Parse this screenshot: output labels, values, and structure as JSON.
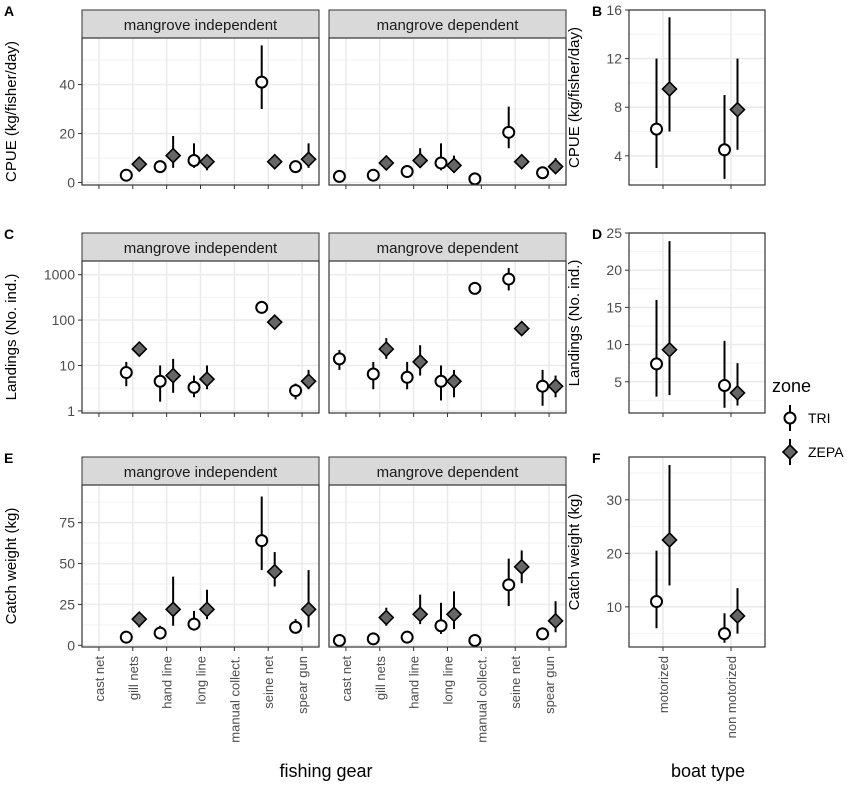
{
  "colors": {
    "panel_border": "#333333",
    "grid": "#ebebeb",
    "strip_fill": "#d9d9d9",
    "tri_fill": "#ffffff",
    "zepa_fill": "#666666",
    "stroke": "#000000"
  },
  "legend": {
    "title": "zone",
    "items": [
      {
        "label": "TRI",
        "shape": "circle"
      },
      {
        "label": "ZEPA",
        "shape": "diamond"
      }
    ]
  },
  "axes_titles": {
    "fishing_gear": "fishing gear",
    "boat_type": "boat type"
  },
  "chart_data": [
    {
      "id": "A",
      "type": "scatter",
      "ylabel": "CPUE (kg/fisher/day)",
      "scale": "linear",
      "ylim": [
        -1,
        59
      ],
      "yticks": [
        0,
        20,
        40
      ],
      "facets": [
        {
          "title": "mangrove independent",
          "points": [
            {
              "x": "gill nets",
              "zone": "TRI",
              "y": 3,
              "lo": 2,
              "hi": 5
            },
            {
              "x": "gill nets",
              "zone": "ZEPA",
              "y": 7.5,
              "lo": 6,
              "hi": 9
            },
            {
              "x": "hand line",
              "zone": "TRI",
              "y": 6.5,
              "lo": 5,
              "hi": 9
            },
            {
              "x": "hand line",
              "zone": "ZEPA",
              "y": 11,
              "lo": 6,
              "hi": 19
            },
            {
              "x": "long line",
              "zone": "TRI",
              "y": 9,
              "lo": 6,
              "hi": 16
            },
            {
              "x": "long line",
              "zone": "ZEPA",
              "y": 8.5,
              "lo": 5,
              "hi": 11
            },
            {
              "x": "seine net",
              "zone": "TRI",
              "y": 41,
              "lo": 30,
              "hi": 56
            },
            {
              "x": "seine net",
              "zone": "ZEPA",
              "y": 8.5,
              "lo": 7,
              "hi": 10
            },
            {
              "x": "spear gun",
              "zone": "TRI",
              "y": 6.5,
              "lo": 4,
              "hi": 9
            },
            {
              "x": "spear gun",
              "zone": "ZEPA",
              "y": 9.5,
              "lo": 6,
              "hi": 16
            }
          ]
        },
        {
          "title": "mangrove dependent",
          "points": [
            {
              "x": "cast net",
              "zone": "TRI",
              "y": 2.5,
              "lo": 2,
              "hi": 3
            },
            {
              "x": "gill nets",
              "zone": "TRI",
              "y": 3,
              "lo": 2,
              "hi": 5
            },
            {
              "x": "gill nets",
              "zone": "ZEPA",
              "y": 8,
              "lo": 6,
              "hi": 11
            },
            {
              "x": "hand line",
              "zone": "TRI",
              "y": 4.5,
              "lo": 3,
              "hi": 7
            },
            {
              "x": "hand line",
              "zone": "ZEPA",
              "y": 9,
              "lo": 6,
              "hi": 14
            },
            {
              "x": "long line",
              "zone": "TRI",
              "y": 8,
              "lo": 5,
              "hi": 16
            },
            {
              "x": "long line",
              "zone": "ZEPA",
              "y": 7,
              "lo": 4,
              "hi": 11
            },
            {
              "x": "manual collect.",
              "zone": "TRI",
              "y": 1.5,
              "lo": 1,
              "hi": 2
            },
            {
              "x": "seine net",
              "zone": "TRI",
              "y": 20.5,
              "lo": 14,
              "hi": 31
            },
            {
              "x": "seine net",
              "zone": "ZEPA",
              "y": 8.5,
              "lo": 7,
              "hi": 10
            },
            {
              "x": "spear gun",
              "zone": "TRI",
              "y": 4,
              "lo": 2,
              "hi": 6
            },
            {
              "x": "spear gun",
              "zone": "ZEPA",
              "y": 6.5,
              "lo": 4,
              "hi": 10
            }
          ]
        }
      ]
    },
    {
      "id": "B",
      "type": "scatter",
      "ylabel": "CPUE (kg/fisher/day)",
      "scale": "linear",
      "ylim": [
        1.6,
        16
      ],
      "yticks": [
        4,
        8,
        12,
        16
      ],
      "facets": [
        {
          "title": "",
          "points": [
            {
              "x": "motorized",
              "zone": "TRI",
              "y": 6.2,
              "lo": 3,
              "hi": 12
            },
            {
              "x": "motorized",
              "zone": "ZEPA",
              "y": 9.5,
              "lo": 6,
              "hi": 15.4
            },
            {
              "x": "non motorized",
              "zone": "TRI",
              "y": 4.5,
              "lo": 2.1,
              "hi": 9
            },
            {
              "x": "non motorized",
              "zone": "ZEPA",
              "y": 7.8,
              "lo": 4.5,
              "hi": 12
            }
          ]
        }
      ]
    },
    {
      "id": "C",
      "type": "scatter",
      "ylabel": "Landings (No. ind.)",
      "scale": "log10",
      "ylim": [
        0.9,
        2000
      ],
      "yticks": [
        1,
        10,
        100,
        1000
      ],
      "facets": [
        {
          "title": "mangrove independent",
          "points": [
            {
              "x": "gill nets",
              "zone": "TRI",
              "y": 7,
              "lo": 3.5,
              "hi": 12
            },
            {
              "x": "gill nets",
              "zone": "ZEPA",
              "y": 23,
              "lo": 16,
              "hi": 30
            },
            {
              "x": "hand line",
              "zone": "TRI",
              "y": 4.5,
              "lo": 1.6,
              "hi": 10
            },
            {
              "x": "hand line",
              "zone": "ZEPA",
              "y": 6,
              "lo": 2.5,
              "hi": 14
            },
            {
              "x": "long line",
              "zone": "TRI",
              "y": 3.3,
              "lo": 2,
              "hi": 6
            },
            {
              "x": "long line",
              "zone": "ZEPA",
              "y": 5,
              "lo": 3,
              "hi": 10
            },
            {
              "x": "seine net",
              "zone": "TRI",
              "y": 190,
              "lo": 170,
              "hi": 210
            },
            {
              "x": "seine net",
              "zone": "ZEPA",
              "y": 90,
              "lo": 80,
              "hi": 100
            },
            {
              "x": "spear gun",
              "zone": "TRI",
              "y": 2.8,
              "lo": 1.8,
              "hi": 4
            },
            {
              "x": "spear gun",
              "zone": "ZEPA",
              "y": 4.5,
              "lo": 3,
              "hi": 8
            }
          ]
        },
        {
          "title": "mangrove dependent",
          "points": [
            {
              "x": "cast net",
              "zone": "TRI",
              "y": 14,
              "lo": 8,
              "hi": 22
            },
            {
              "x": "gill nets",
              "zone": "TRI",
              "y": 6.5,
              "lo": 3,
              "hi": 12
            },
            {
              "x": "gill nets",
              "zone": "ZEPA",
              "y": 23,
              "lo": 14,
              "hi": 40
            },
            {
              "x": "hand line",
              "zone": "TRI",
              "y": 5.5,
              "lo": 3,
              "hi": 12
            },
            {
              "x": "hand line",
              "zone": "ZEPA",
              "y": 12,
              "lo": 6,
              "hi": 28
            },
            {
              "x": "long line",
              "zone": "TRI",
              "y": 4.5,
              "lo": 1.7,
              "hi": 10
            },
            {
              "x": "long line",
              "zone": "ZEPA",
              "y": 4.5,
              "lo": 2,
              "hi": 8
            },
            {
              "x": "manual collect.",
              "zone": "TRI",
              "y": 500,
              "lo": 450,
              "hi": 550
            },
            {
              "x": "seine net",
              "zone": "TRI",
              "y": 800,
              "lo": 450,
              "hi": 1400
            },
            {
              "x": "seine net",
              "zone": "ZEPA",
              "y": 65,
              "lo": 55,
              "hi": 75
            },
            {
              "x": "spear gun",
              "zone": "TRI",
              "y": 3.5,
              "lo": 1.3,
              "hi": 8
            },
            {
              "x": "spear gun",
              "zone": "ZEPA",
              "y": 3.5,
              "lo": 2,
              "hi": 6
            }
          ]
        }
      ]
    },
    {
      "id": "D",
      "type": "scatter",
      "ylabel": "Landings (No. ind.)",
      "scale": "linear",
      "ylim": [
        0.8,
        25
      ],
      "yticks": [
        5,
        10,
        15,
        20,
        25
      ],
      "facets": [
        {
          "title": "",
          "points": [
            {
              "x": "motorized",
              "zone": "TRI",
              "y": 7.4,
              "lo": 3,
              "hi": 16
            },
            {
              "x": "motorized",
              "zone": "ZEPA",
              "y": 9.3,
              "lo": 3.2,
              "hi": 23.9
            },
            {
              "x": "non motorized",
              "zone": "TRI",
              "y": 4.5,
              "lo": 1.5,
              "hi": 10.5
            },
            {
              "x": "non motorized",
              "zone": "ZEPA",
              "y": 3.5,
              "lo": 1.8,
              "hi": 7.5
            }
          ]
        }
      ]
    },
    {
      "id": "E",
      "type": "scatter",
      "ylabel": "Catch weight (kg)",
      "scale": "linear",
      "ylim": [
        -1,
        98
      ],
      "yticks": [
        0,
        25,
        50,
        75
      ],
      "facets": [
        {
          "title": "mangrove independent",
          "points": [
            {
              "x": "gill nets",
              "zone": "TRI",
              "y": 5,
              "lo": 3,
              "hi": 8
            },
            {
              "x": "gill nets",
              "zone": "ZEPA",
              "y": 16,
              "lo": 11,
              "hi": 20
            },
            {
              "x": "hand line",
              "zone": "TRI",
              "y": 7.5,
              "lo": 5,
              "hi": 12
            },
            {
              "x": "hand line",
              "zone": "ZEPA",
              "y": 22,
              "lo": 12,
              "hi": 42
            },
            {
              "x": "long line",
              "zone": "TRI",
              "y": 13,
              "lo": 9,
              "hi": 21
            },
            {
              "x": "long line",
              "zone": "ZEPA",
              "y": 22,
              "lo": 16,
              "hi": 34
            },
            {
              "x": "seine net",
              "zone": "TRI",
              "y": 64,
              "lo": 46,
              "hi": 91
            },
            {
              "x": "seine net",
              "zone": "ZEPA",
              "y": 45,
              "lo": 36,
              "hi": 57
            },
            {
              "x": "spear gun",
              "zone": "TRI",
              "y": 11,
              "lo": 8,
              "hi": 16
            },
            {
              "x": "spear gun",
              "zone": "ZEPA",
              "y": 22,
              "lo": 11,
              "hi": 46
            }
          ]
        },
        {
          "title": "mangrove dependent",
          "points": [
            {
              "x": "cast net",
              "zone": "TRI",
              "y": 3,
              "lo": 2,
              "hi": 4
            },
            {
              "x": "gill nets",
              "zone": "TRI",
              "y": 4,
              "lo": 2,
              "hi": 6
            },
            {
              "x": "gill nets",
              "zone": "ZEPA",
              "y": 17,
              "lo": 12,
              "hi": 23
            },
            {
              "x": "hand line",
              "zone": "TRI",
              "y": 5,
              "lo": 3,
              "hi": 8
            },
            {
              "x": "hand line",
              "zone": "ZEPA",
              "y": 19,
              "lo": 13,
              "hi": 31
            },
            {
              "x": "long line",
              "zone": "TRI",
              "y": 12,
              "lo": 7,
              "hi": 26
            },
            {
              "x": "long line",
              "zone": "ZEPA",
              "y": 19,
              "lo": 10,
              "hi": 33
            },
            {
              "x": "manual collect.",
              "zone": "TRI",
              "y": 3,
              "lo": 2,
              "hi": 4
            },
            {
              "x": "seine net",
              "zone": "TRI",
              "y": 37,
              "lo": 24,
              "hi": 53
            },
            {
              "x": "seine net",
              "zone": "ZEPA",
              "y": 48,
              "lo": 38,
              "hi": 58
            },
            {
              "x": "spear gun",
              "zone": "TRI",
              "y": 7,
              "lo": 4,
              "hi": 11
            },
            {
              "x": "spear gun",
              "zone": "ZEPA",
              "y": 15,
              "lo": 8,
              "hi": 27
            }
          ]
        }
      ]
    },
    {
      "id": "F",
      "type": "scatter",
      "ylabel": "Catch weight (kg)",
      "scale": "linear",
      "ylim": [
        2.5,
        38
      ],
      "yticks": [
        10,
        20,
        30
      ],
      "facets": [
        {
          "title": "",
          "points": [
            {
              "x": "motorized",
              "zone": "TRI",
              "y": 11,
              "lo": 6,
              "hi": 20.5
            },
            {
              "x": "motorized",
              "zone": "ZEPA",
              "y": 22.5,
              "lo": 14,
              "hi": 36.5
            },
            {
              "x": "non motorized",
              "zone": "TRI",
              "y": 5,
              "lo": 3.3,
              "hi": 8.8
            },
            {
              "x": "non motorized",
              "zone": "ZEPA",
              "y": 8.3,
              "lo": 5,
              "hi": 13.5
            }
          ]
        }
      ]
    }
  ],
  "categories": {
    "gear": [
      "cast net",
      "gill nets",
      "hand line",
      "long line",
      "manual collect.",
      "seine net",
      "spear gun"
    ],
    "boat": [
      "motorized",
      "non motorized"
    ]
  }
}
